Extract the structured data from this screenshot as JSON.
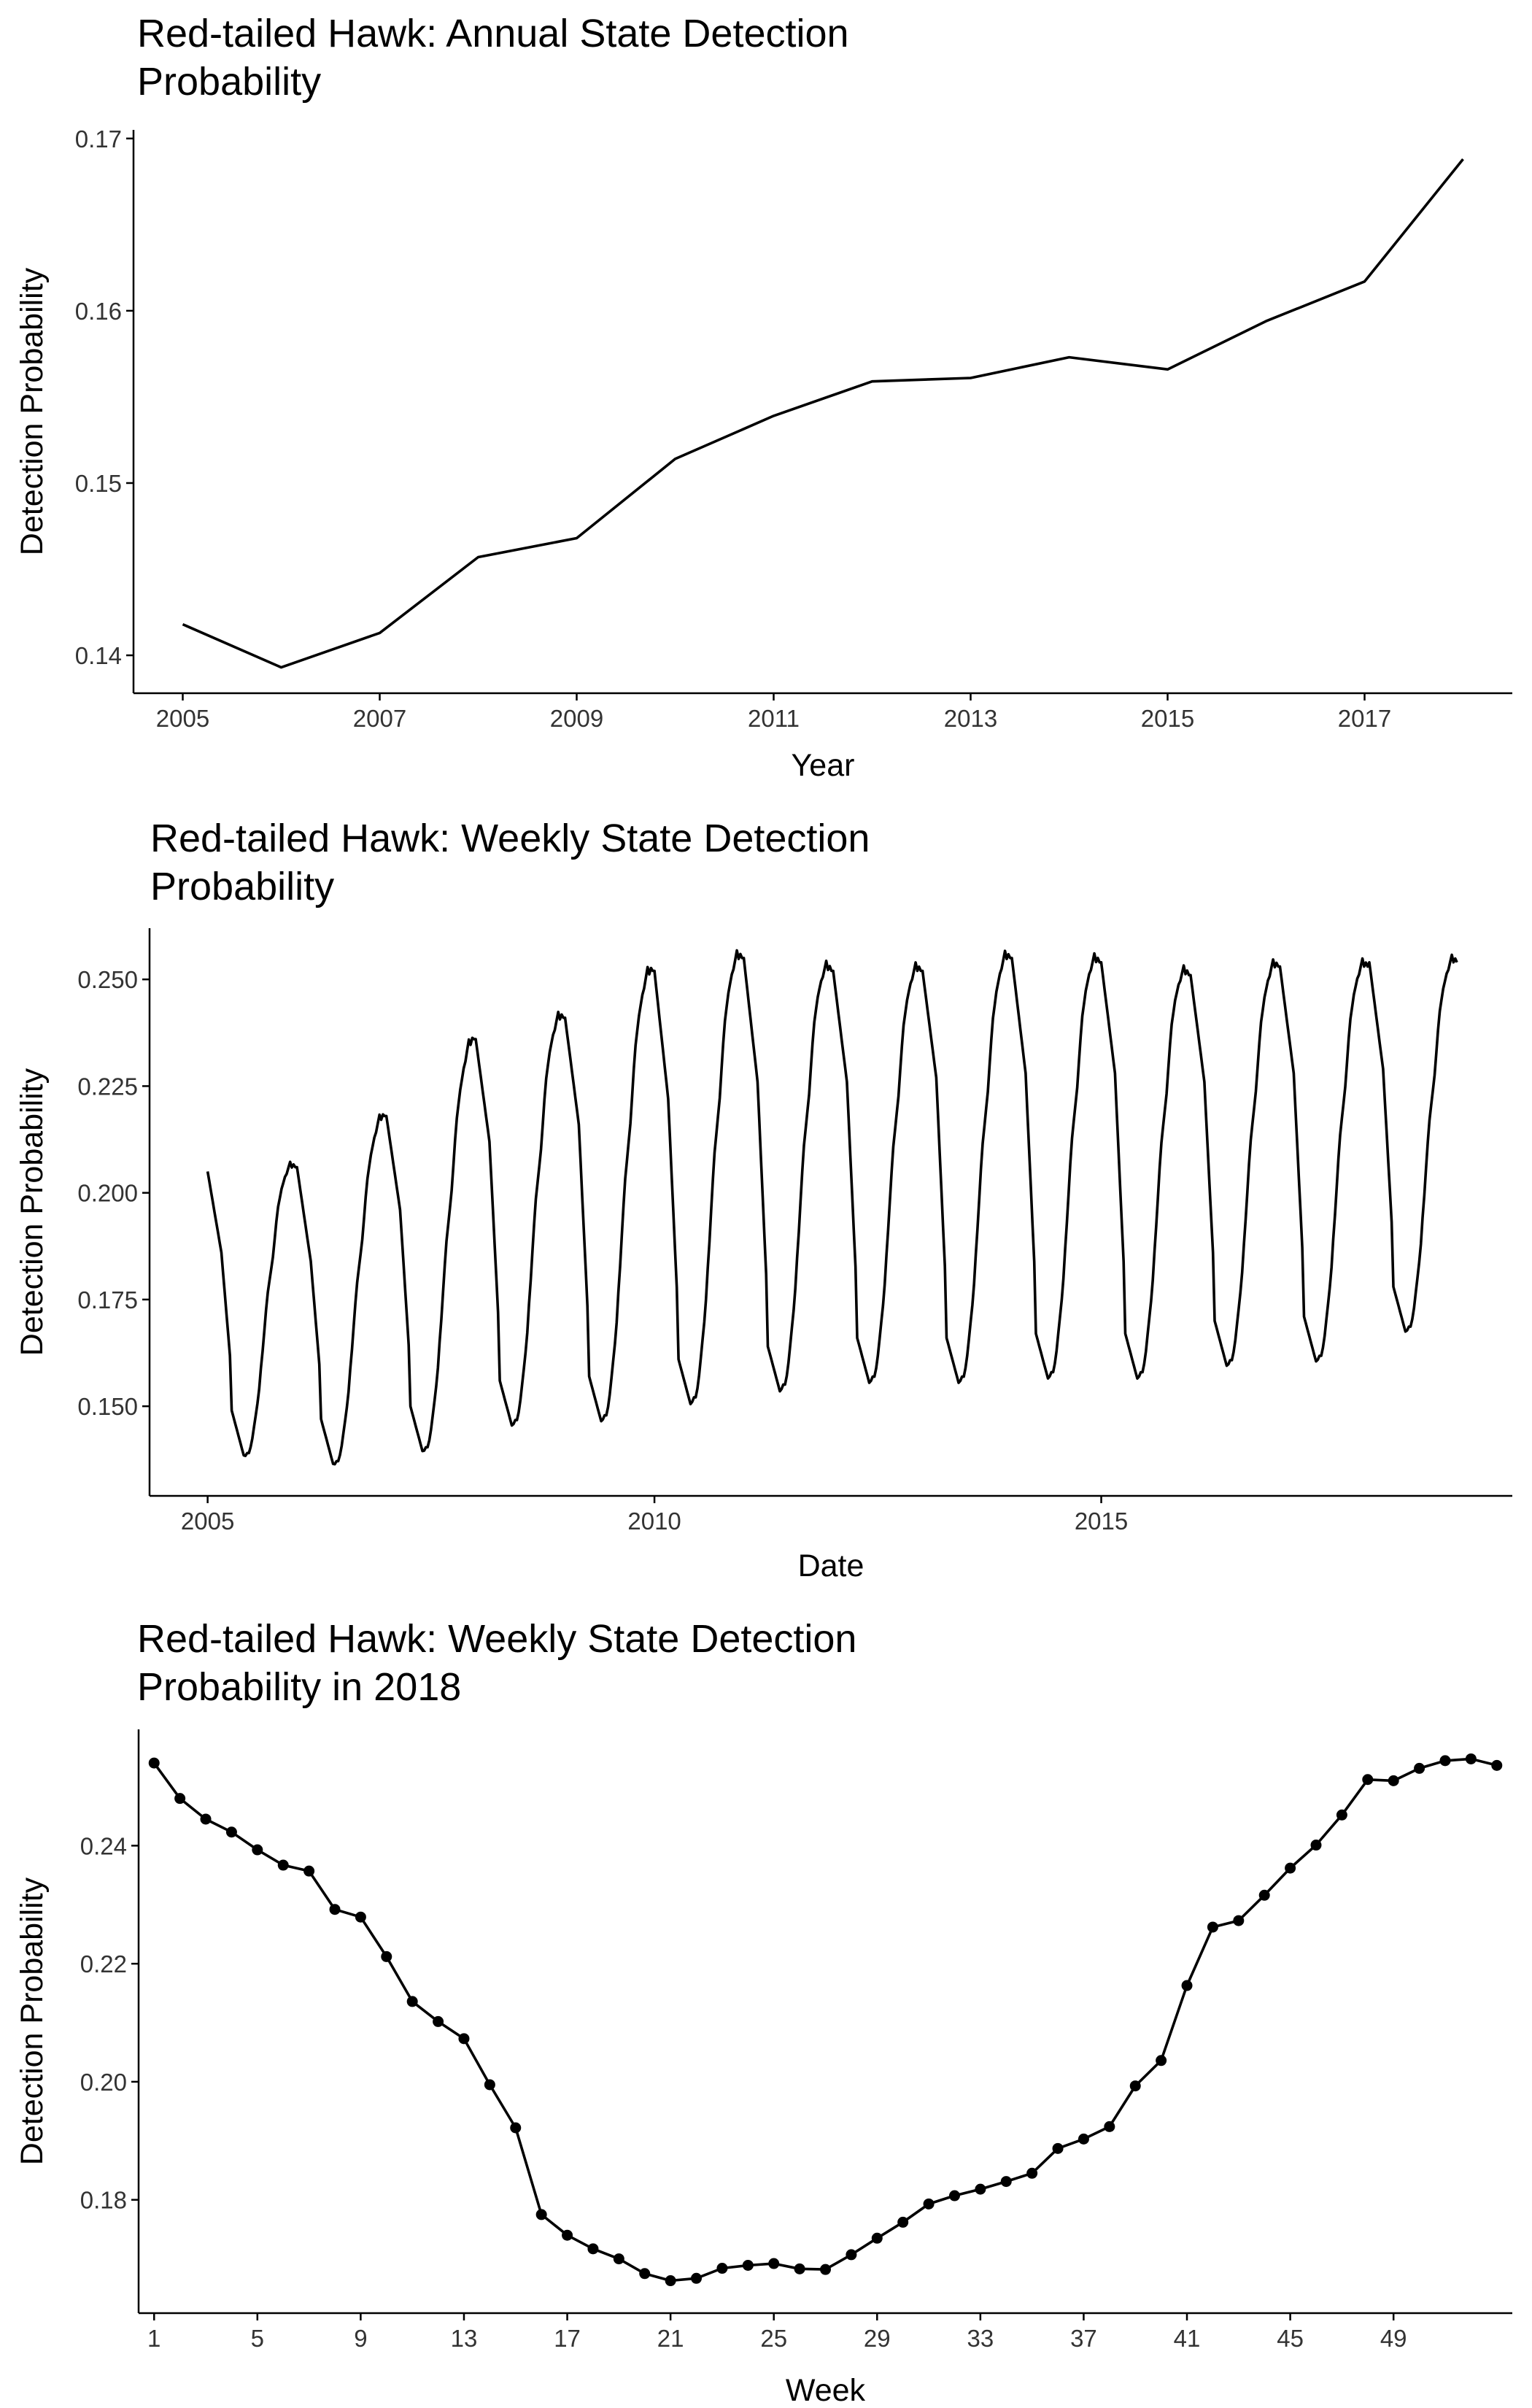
{
  "chart_data": [
    {
      "type": "line",
      "title": "Red-tailed Hawk: Annual State Detection Probability",
      "title_lines": [
        "Red-tailed Hawk: Annual State Detection",
        "Probability"
      ],
      "xlabel": "Year",
      "ylabel": "Detection Probability",
      "xlim": [
        2004.5,
        2018.5
      ],
      "ylim": [
        0.1378,
        0.1705
      ],
      "xticks": [
        2005,
        2007,
        2009,
        2011,
        2013,
        2015,
        2017
      ],
      "xtick_labels": [
        "2005",
        "2007",
        "2009",
        "2011",
        "2013",
        "2015",
        "2017"
      ],
      "yticks": [
        0.14,
        0.15,
        0.16,
        0.17
      ],
      "ytick_labels": [
        "0.14",
        "0.15",
        "0.16",
        "0.17"
      ],
      "grid": false,
      "series": [
        {
          "x": [
            2005,
            2006,
            2007,
            2008,
            2009,
            2010,
            2011,
            2012,
            2013,
            2014,
            2015,
            2016,
            2017,
            2018
          ],
          "y": [
            0.1418,
            0.1393,
            0.1413,
            0.1457,
            0.1468,
            0.1514,
            0.1539,
            0.1559,
            0.1561,
            0.1573,
            0.1566,
            0.1594,
            0.1617,
            0.1688
          ]
        }
      ]
    },
    {
      "type": "line",
      "title": "Red-tailed Hawk: Weekly State Detection Probability",
      "title_lines": [
        "Red-tailed Hawk: Weekly State Detection",
        "Probability"
      ],
      "xlabel": "Date",
      "ylabel": "Detection Probability",
      "xlim": [
        2004.35,
        2019.6
      ],
      "ylim": [
        0.129,
        0.262
      ],
      "xticks": [
        2005,
        2010,
        2015
      ],
      "xtick_labels": [
        "2005",
        "2010",
        "2015"
      ],
      "yticks": [
        0.15,
        0.175,
        0.2,
        0.225,
        0.25
      ],
      "ytick_labels": [
        "0.150",
        "0.175",
        "0.200",
        "0.225",
        "0.250"
      ],
      "grid": false,
      "weeks_per_year": 52,
      "years": [
        {
          "year": 2005,
          "start": 0.205,
          "decline_end": 0.186,
          "summer_min": 0.137,
          "peak": 0.206
        },
        {
          "year": 2006,
          "start": 0.206,
          "decline_end": 0.184,
          "summer_min": 0.135,
          "peak": 0.218
        },
        {
          "year": 2007,
          "start": 0.218,
          "decline_end": 0.196,
          "summer_min": 0.138,
          "peak": 0.236
        },
        {
          "year": 2008,
          "start": 0.236,
          "decline_end": 0.212,
          "summer_min": 0.144,
          "peak": 0.241
        },
        {
          "year": 2009,
          "start": 0.241,
          "decline_end": 0.216,
          "summer_min": 0.145,
          "peak": 0.252
        },
        {
          "year": 2010,
          "start": 0.252,
          "decline_end": 0.222,
          "summer_min": 0.149,
          "peak": 0.255
        },
        {
          "year": 2011,
          "start": 0.255,
          "decline_end": 0.226,
          "summer_min": 0.152,
          "peak": 0.252
        },
        {
          "year": 2012,
          "start": 0.252,
          "decline_end": 0.226,
          "summer_min": 0.154,
          "peak": 0.252
        },
        {
          "year": 2013,
          "start": 0.252,
          "decline_end": 0.227,
          "summer_min": 0.154,
          "peak": 0.255
        },
        {
          "year": 2014,
          "start": 0.255,
          "decline_end": 0.228,
          "summer_min": 0.155,
          "peak": 0.254
        },
        {
          "year": 2015,
          "start": 0.254,
          "decline_end": 0.228,
          "summer_min": 0.155,
          "peak": 0.251
        },
        {
          "year": 2016,
          "start": 0.251,
          "decline_end": 0.226,
          "summer_min": 0.158,
          "peak": 0.253
        },
        {
          "year": 2017,
          "start": 0.253,
          "decline_end": 0.228,
          "summer_min": 0.159,
          "peak": 0.253
        },
        {
          "year": 2018,
          "start": 0.254,
          "decline_end": 0.229,
          "summer_min": 0.166,
          "peak": 0.254
        }
      ]
    },
    {
      "type": "line",
      "markers": true,
      "title": "Red-tailed Hawk: Weekly State Detection Probability in 2018",
      "title_lines": [
        "Red-tailed Hawk: Weekly State Detection",
        "Probability in 2018"
      ],
      "xlabel": "Week",
      "ylabel": "Detection Probability",
      "xlim": [
        0.4,
        53.6
      ],
      "ylim": [
        0.1608,
        0.2597
      ],
      "xticks": [
        1,
        5,
        9,
        13,
        17,
        21,
        25,
        29,
        33,
        37,
        41,
        45,
        49
      ],
      "xtick_labels": [
        "1",
        "5",
        "9",
        "13",
        "17",
        "21",
        "25",
        "29",
        "33",
        "37",
        "41",
        "45",
        "49"
      ],
      "yticks": [
        0.18,
        0.2,
        0.22,
        0.24
      ],
      "ytick_labels": [
        "0.18",
        "0.20",
        "0.22",
        "0.24"
      ],
      "grid": false,
      "series": [
        {
          "x": [
            1,
            2,
            3,
            4,
            5,
            6,
            7,
            8,
            9,
            10,
            11,
            12,
            13,
            14,
            15,
            16,
            17,
            18,
            19,
            20,
            21,
            22,
            23,
            24,
            25,
            26,
            27,
            28,
            29,
            30,
            31,
            32,
            33,
            34,
            35,
            36,
            37,
            38,
            39,
            40,
            41,
            42,
            43,
            44,
            45,
            46,
            47,
            48,
            49,
            50,
            51,
            52,
            53
          ],
          "y": [
            0.254,
            0.248,
            0.2445,
            0.2423,
            0.2393,
            0.2367,
            0.2357,
            0.2292,
            0.2279,
            0.2212,
            0.2136,
            0.2102,
            0.2073,
            0.1995,
            0.1922,
            0.1775,
            0.174,
            0.1717,
            0.17,
            0.1675,
            0.1663,
            0.1667,
            0.1684,
            0.1689,
            0.1692,
            0.1683,
            0.1682,
            0.1707,
            0.1735,
            0.1762,
            0.1793,
            0.1807,
            0.1818,
            0.1831,
            0.1845,
            0.1887,
            0.1903,
            0.1924,
            0.1993,
            0.2036,
            0.2163,
            0.2262,
            0.2273,
            0.2316,
            0.2362,
            0.2401,
            0.2452,
            0.2512,
            0.251,
            0.2531,
            0.2544,
            0.2547,
            0.2536
          ]
        }
      ]
    }
  ]
}
